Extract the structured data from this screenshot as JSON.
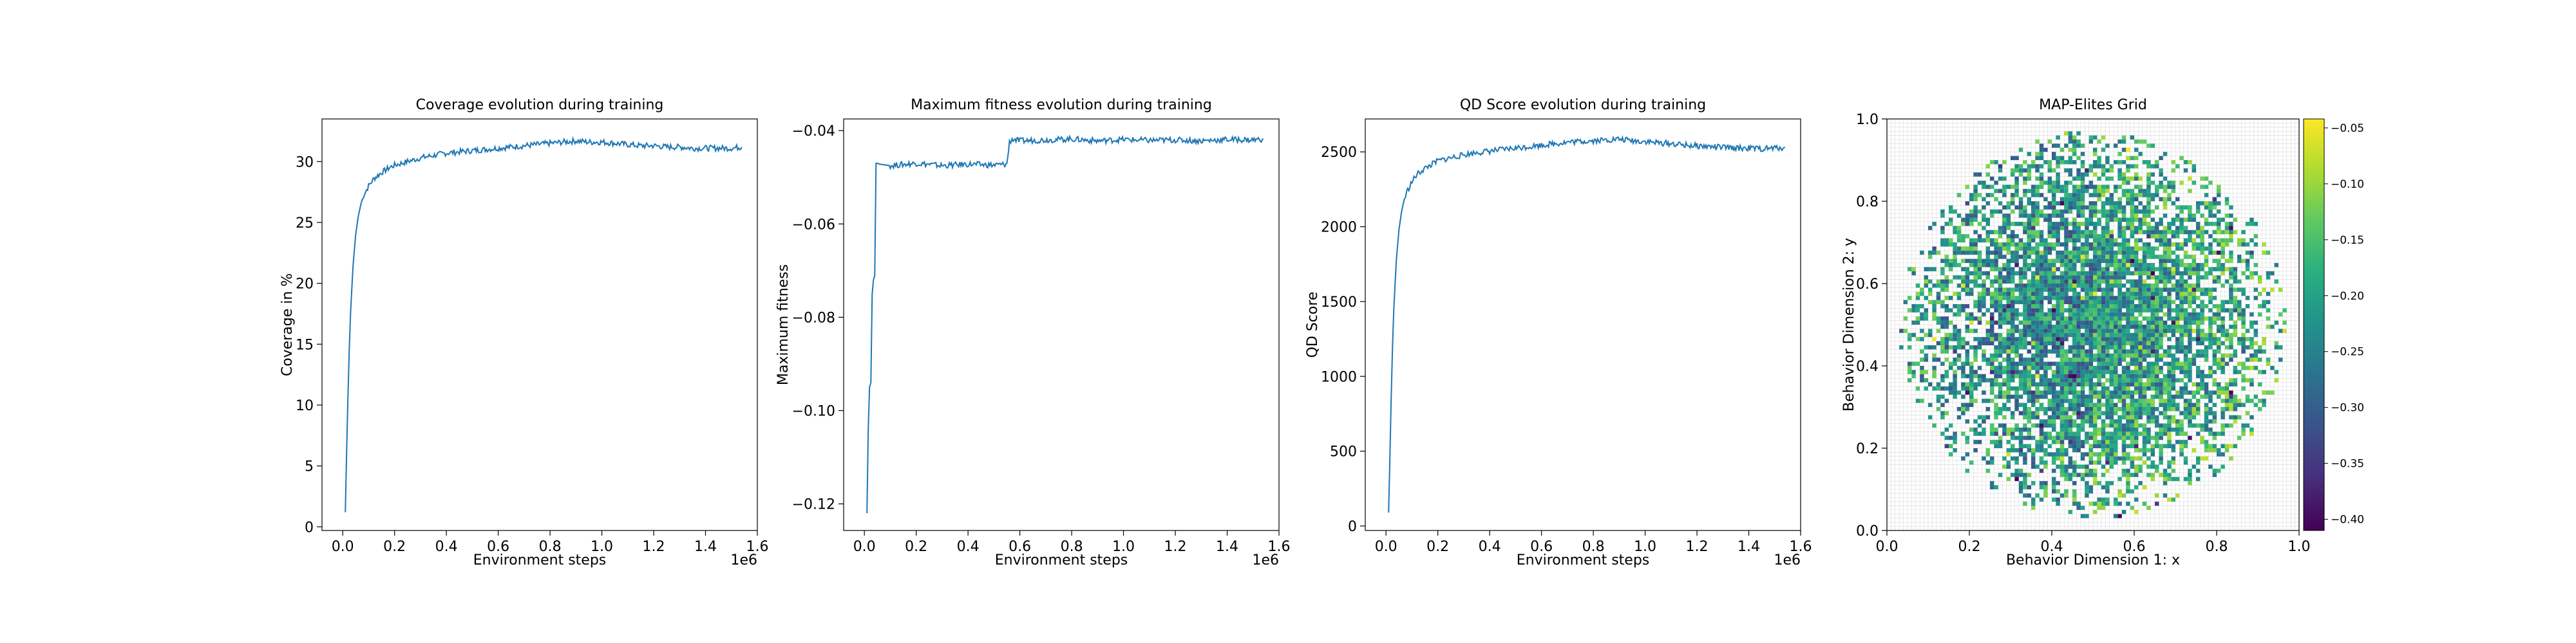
{
  "chart_data": [
    {
      "type": "line",
      "title": "Coverage evolution during training",
      "xlabel": "Environment steps",
      "ylabel": "Coverage in %",
      "x_offset_label": "1e6",
      "xlim": [
        -0.08,
        1.6
      ],
      "ylim": [
        -0.3,
        33.5
      ],
      "xticks": [
        0.0,
        0.2,
        0.4,
        0.6,
        0.8,
        1.0,
        1.2,
        1.4,
        1.6
      ],
      "xtick_labels": [
        "0.0",
        "0.2",
        "0.4",
        "0.6",
        "0.8",
        "1.0",
        "1.2",
        "1.4",
        "1.6"
      ],
      "yticks": [
        0,
        5,
        10,
        15,
        20,
        25,
        30
      ],
      "ytick_labels": [
        "0",
        "5",
        "10",
        "15",
        "20",
        "25",
        "30"
      ],
      "grid": false,
      "series": [
        {
          "color": "#1f77b4",
          "x": [
            0.01,
            0.015,
            0.02,
            0.025,
            0.03,
            0.04,
            0.05,
            0.06,
            0.07,
            0.08,
            0.1,
            0.12,
            0.15,
            0.18,
            0.2,
            0.25,
            0.3,
            0.35,
            0.4,
            0.45,
            0.5,
            0.55,
            0.6,
            0.65,
            0.7,
            0.75,
            0.8,
            0.85,
            0.9,
            0.95,
            1.0,
            1.05,
            1.1,
            1.15,
            1.2,
            1.25,
            1.3,
            1.35,
            1.4,
            1.45,
            1.5,
            1.54
          ],
          "y": [
            1.2,
            6.0,
            10.5,
            14.5,
            17.5,
            21.5,
            24.0,
            25.5,
            26.5,
            27.2,
            28.0,
            28.6,
            29.1,
            29.5,
            29.7,
            30.0,
            30.3,
            30.5,
            30.7,
            30.8,
            30.9,
            31.0,
            31.1,
            31.2,
            31.3,
            31.4,
            31.5,
            31.6,
            31.7,
            31.6,
            31.6,
            31.5,
            31.4,
            31.3,
            31.3,
            31.2,
            31.2,
            31.1,
            31.1,
            31.1,
            31.1,
            31.2
          ]
        }
      ]
    },
    {
      "type": "line",
      "title": "Maximum fitness evolution during training",
      "xlabel": "Environment steps",
      "ylabel": "Maximum fitness",
      "x_offset_label": "1e6",
      "xlim": [
        -0.08,
        1.6
      ],
      "ylim": [
        -0.1257,
        -0.0375
      ],
      "xticks": [
        0.0,
        0.2,
        0.4,
        0.6,
        0.8,
        1.0,
        1.2,
        1.4,
        1.6
      ],
      "xtick_labels": [
        "0.0",
        "0.2",
        "0.4",
        "0.6",
        "0.8",
        "1.0",
        "1.2",
        "1.4",
        "1.6"
      ],
      "yticks": [
        -0.12,
        -0.1,
        -0.08,
        -0.06,
        -0.04
      ],
      "ytick_labels": [
        "−0.12",
        "−0.10",
        "−0.08",
        "−0.06",
        "−0.04"
      ],
      "grid": false,
      "series": [
        {
          "color": "#1f77b4",
          "x": [
            0.01,
            0.015,
            0.02,
            0.025,
            0.03,
            0.035,
            0.04,
            0.045,
            0.05,
            0.06,
            0.1,
            0.2,
            0.3,
            0.4,
            0.5,
            0.55,
            0.56,
            0.57,
            0.6,
            0.7,
            0.8,
            0.9,
            1.0,
            1.1,
            1.2,
            1.3,
            1.4,
            1.5,
            1.54
          ],
          "y": [
            -0.122,
            -0.104,
            -0.095,
            -0.094,
            -0.075,
            -0.072,
            -0.071,
            -0.047,
            -0.047,
            -0.0472,
            -0.0475,
            -0.047,
            -0.0475,
            -0.0472,
            -0.0474,
            -0.0472,
            -0.0425,
            -0.0418,
            -0.0422,
            -0.042,
            -0.0418,
            -0.0422,
            -0.0419,
            -0.0421,
            -0.042,
            -0.0422,
            -0.0419,
            -0.042,
            -0.0418
          ]
        }
      ]
    },
    {
      "type": "line",
      "title": "QD Score evolution during training",
      "xlabel": "Environment steps",
      "ylabel": "QD Score",
      "x_offset_label": "1e6",
      "xlim": [
        -0.08,
        1.6
      ],
      "ylim": [
        -30,
        2720
      ],
      "xticks": [
        0.0,
        0.2,
        0.4,
        0.6,
        0.8,
        1.0,
        1.2,
        1.4,
        1.6
      ],
      "xtick_labels": [
        "0.0",
        "0.2",
        "0.4",
        "0.6",
        "0.8",
        "1.0",
        "1.2",
        "1.4",
        "1.6"
      ],
      "yticks": [
        0,
        500,
        1000,
        1500,
        2000,
        2500
      ],
      "ytick_labels": [
        "0",
        "500",
        "1000",
        "1500",
        "2000",
        "2500"
      ],
      "grid": false,
      "series": [
        {
          "color": "#1f77b4",
          "x": [
            0.01,
            0.015,
            0.02,
            0.025,
            0.03,
            0.04,
            0.05,
            0.06,
            0.07,
            0.08,
            0.1,
            0.12,
            0.15,
            0.18,
            0.2,
            0.25,
            0.3,
            0.35,
            0.4,
            0.45,
            0.5,
            0.55,
            0.6,
            0.65,
            0.7,
            0.75,
            0.8,
            0.85,
            0.9,
            0.95,
            1.0,
            1.05,
            1.1,
            1.15,
            1.2,
            1.25,
            1.3,
            1.35,
            1.4,
            1.45,
            1.5,
            1.54
          ],
          "y": [
            90,
            450,
            850,
            1200,
            1450,
            1780,
            1980,
            2100,
            2180,
            2230,
            2300,
            2350,
            2390,
            2420,
            2440,
            2460,
            2480,
            2495,
            2505,
            2515,
            2525,
            2535,
            2545,
            2555,
            2565,
            2570,
            2575,
            2580,
            2585,
            2575,
            2570,
            2560,
            2555,
            2545,
            2540,
            2535,
            2530,
            2525,
            2525,
            2520,
            2525,
            2530
          ]
        }
      ]
    },
    {
      "type": "heatmap",
      "title": "MAP-Elites Grid",
      "xlabel": "Behavior Dimension 1: x",
      "ylabel": "Behavior Dimension 2: y",
      "xlim": [
        0.0,
        1.0
      ],
      "ylim": [
        0.0,
        1.0
      ],
      "xticks": [
        0.0,
        0.2,
        0.4,
        0.6,
        0.8,
        1.0
      ],
      "xtick_labels": [
        "0.0",
        "0.2",
        "0.4",
        "0.6",
        "0.8",
        "1.0"
      ],
      "yticks": [
        0.0,
        0.2,
        0.4,
        0.6,
        0.8,
        1.0
      ],
      "ytick_labels": [
        "0.0",
        "0.2",
        "0.4",
        "0.6",
        "0.8",
        "1.0"
      ],
      "grid": true,
      "grid_cells": 100,
      "filled_cells_approx": 3120,
      "fill_region": {
        "center": [
          0.5,
          0.5
        ],
        "radius": 0.47
      },
      "colorbar": {
        "cmap": "viridis",
        "min": -0.41,
        "max": -0.042,
        "ticks": [
          -0.4,
          -0.35,
          -0.3,
          -0.25,
          -0.2,
          -0.15,
          -0.1,
          -0.05
        ],
        "tick_labels": [
          "−0.40",
          "−0.35",
          "−0.30",
          "−0.25",
          "−0.20",
          "−0.15",
          "−0.10",
          "−0.05"
        ]
      }
    }
  ]
}
